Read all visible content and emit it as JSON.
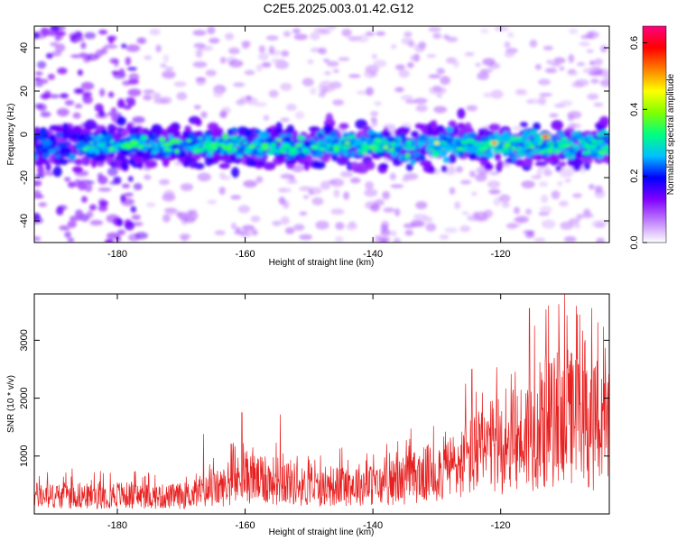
{
  "figure": {
    "title": "C2E5.2025.003.01.42.G12"
  },
  "colorbar": {
    "label": "Normalized spectral amplitude",
    "ticks": [
      "0.0",
      "0.2",
      "0.4",
      "0.6"
    ],
    "range": [
      0.0,
      0.65
    ],
    "colormap": [
      "#ffffff",
      "#c080ff",
      "#8000ff",
      "#0000ff",
      "#00c0ff",
      "#00ff80",
      "#80ff00",
      "#ffff00",
      "#ff8000",
      "#ff0000",
      "#ff0080"
    ]
  },
  "chart_data": [
    {
      "type": "heatmap",
      "title": "",
      "xlabel": "Height of straight line (km)",
      "ylabel": "Frequency (Hz)",
      "xlim": [
        -193,
        -103
      ],
      "ylim": [
        -50,
        50
      ],
      "xticks": [
        -180,
        -160,
        -140,
        -120
      ],
      "yticks": [
        -40,
        -20,
        0,
        20,
        40
      ],
      "band_center_hz": -5,
      "band_halfwidth_hz": 8,
      "value_range": [
        0.0,
        0.65
      ],
      "peaks": [
        {
          "x": -113,
          "y": -1,
          "value": 0.65
        },
        {
          "x": -121,
          "y": -4,
          "value": 0.55
        },
        {
          "x": -130,
          "y": -4,
          "value": 0.45
        },
        {
          "x": -138,
          "y": -6,
          "value": 0.4
        },
        {
          "x": -144,
          "y": -4,
          "value": 0.38
        },
        {
          "x": -160,
          "y": -4,
          "value": 0.3
        },
        {
          "x": -167,
          "y": -2,
          "value": 0.3
        },
        {
          "x": -184,
          "y": -4,
          "value": 0.3
        },
        {
          "x": -186,
          "y": 20,
          "value": 0.15
        }
      ]
    },
    {
      "type": "line",
      "title": "",
      "xlabel": "Height of straight line (km)",
      "ylabel": "SNR (10 * v/v)",
      "xlim": [
        -193,
        -103
      ],
      "ylim": [
        0,
        3800
      ],
      "xticks": [
        -180,
        -160,
        -140,
        -120
      ],
      "yticks": [
        1000,
        2000,
        3000
      ],
      "color": "#e82020",
      "series": [
        {
          "x": [
            -193,
            -190,
            -187,
            -184,
            -181,
            -178,
            -175,
            -172,
            -169,
            -166,
            -163,
            -160,
            -157,
            -154,
            -151,
            -148,
            -145,
            -142,
            -139,
            -136,
            -133,
            -130,
            -127,
            -124,
            -121,
            -118,
            -115,
            -112,
            -109,
            -106,
            -103
          ],
          "values": [
            350,
            330,
            360,
            320,
            370,
            340,
            330,
            320,
            350,
            420,
            520,
            700,
            600,
            650,
            500,
            480,
            530,
            560,
            520,
            620,
            700,
            800,
            900,
            1100,
            1250,
            1350,
            1550,
            1700,
            1800,
            1650,
            1500
          ],
          "peaks": [
            {
              "x": -166.5,
              "y": 1380
            },
            {
              "x": -160.5,
              "y": 1750
            },
            {
              "x": -154.5,
              "y": 1720
            },
            {
              "x": -125.5,
              "y": 2250
            },
            {
              "x": -124.5,
              "y": 2500
            },
            {
              "x": -115.5,
              "y": 3550
            },
            {
              "x": -112.5,
              "y": 3600
            },
            {
              "x": -110.0,
              "y": 3800
            },
            {
              "x": -108.0,
              "y": 3450
            }
          ]
        }
      ]
    }
  ]
}
